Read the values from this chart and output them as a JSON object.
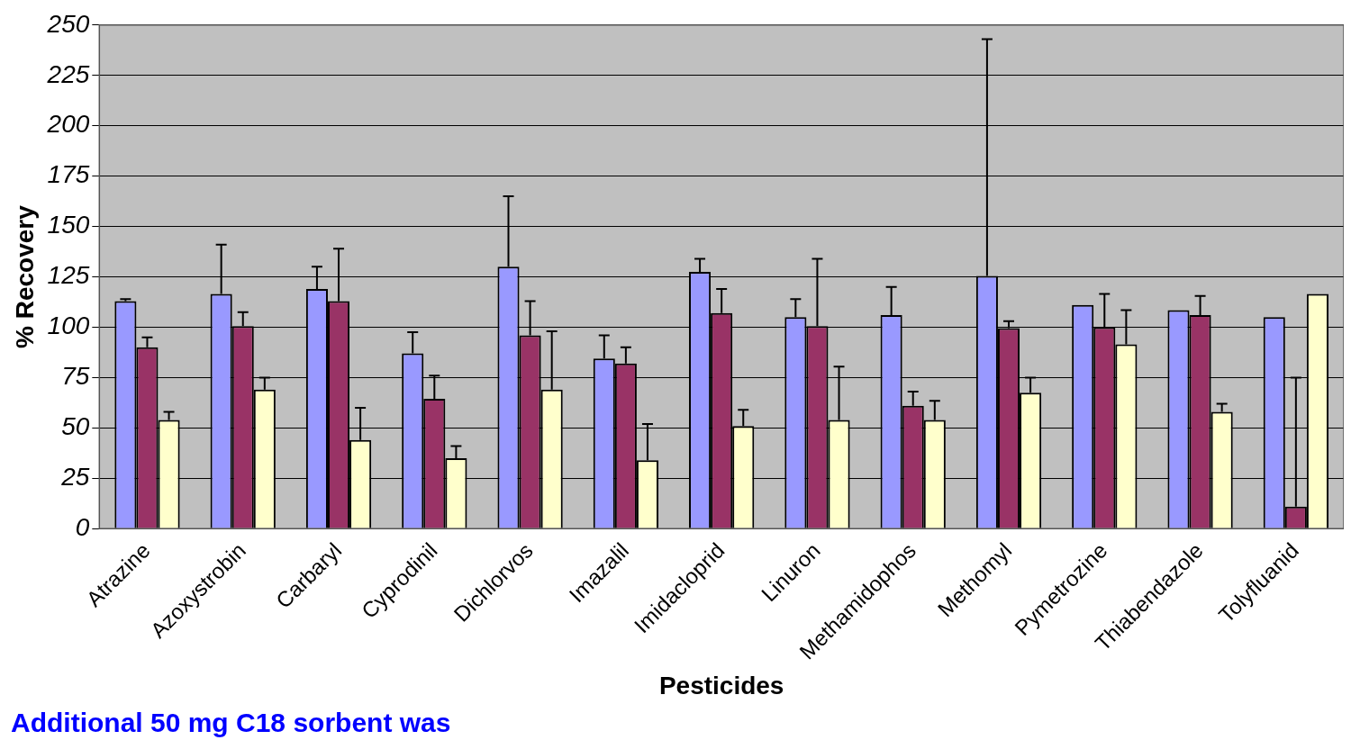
{
  "chart_data": {
    "type": "bar",
    "xlabel": "Pesticides",
    "ylabel": "% Recovery",
    "categories": [
      "Atrazine",
      "Azoxystrobin",
      "Carbaryl",
      "Cyprodinil",
      "Dichlorvos",
      "Imazalil",
      "Imidacloprid",
      "Linuron",
      "Methamidophos",
      "Methomyl",
      "Pymetrozine",
      "Thiabendazole",
      "Tolyfluanid"
    ],
    "series": [
      {
        "color": "#9999ff",
        "values": [
          113,
          116.5,
          119,
          87,
          130,
          84.5,
          127.5,
          105,
          106,
          125.5,
          111,
          108.5,
          105
        ],
        "errors": [
          [
            113,
            114
          ],
          [
            116.5,
            141
          ],
          [
            119,
            130
          ],
          [
            87,
            97.5
          ],
          [
            130,
            165
          ],
          [
            84.5,
            96
          ],
          [
            127.5,
            134
          ],
          [
            105,
            114
          ],
          [
            106,
            120
          ],
          [
            125.5,
            243
          ],
          null,
          null,
          null
        ]
      },
      {
        "color": "#993366",
        "values": [
          90,
          100.5,
          113,
          64.5,
          96,
          82,
          107,
          100.5,
          61,
          99.5,
          100,
          106,
          11
        ],
        "errors": [
          [
            90,
            95
          ],
          [
            100.5,
            107.5
          ],
          [
            113,
            139
          ],
          [
            64.5,
            76
          ],
          [
            96,
            113
          ],
          [
            82,
            90
          ],
          [
            107,
            119
          ],
          [
            100.5,
            134
          ],
          [
            61,
            68
          ],
          [
            99.5,
            103
          ],
          [
            100,
            116.5
          ],
          [
            106,
            115.5
          ],
          [
            11,
            75
          ]
        ]
      },
      {
        "color": "#ffffcc",
        "values": [
          54,
          69,
          44,
          35,
          69,
          34,
          51,
          54,
          54,
          67.5,
          91.5,
          58,
          116.5
        ],
        "errors": [
          [
            54,
            58
          ],
          [
            69,
            75
          ],
          [
            44,
            60
          ],
          [
            35,
            41
          ],
          [
            69,
            98
          ],
          [
            34,
            52
          ],
          [
            51,
            59
          ],
          [
            54,
            80.5
          ],
          [
            54,
            63.5
          ],
          [
            67.5,
            75
          ],
          [
            91.5,
            108.5
          ],
          [
            58,
            62
          ],
          null
        ]
      }
    ],
    "ylim": [
      0,
      250
    ],
    "yticks": [
      0,
      25,
      50,
      75,
      100,
      125,
      150,
      175,
      200,
      225,
      250
    ],
    "grid": "y",
    "legend": false,
    "annotations": [
      "Additional 50 mg C18 sorbent was"
    ]
  }
}
